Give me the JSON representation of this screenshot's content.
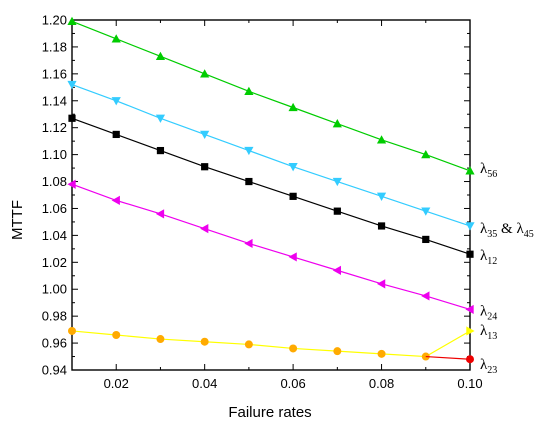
{
  "chart_data": {
    "type": "line",
    "xlabel": "Failure rates",
    "ylabel": "MTTF",
    "xlim": [
      0.01,
      0.1
    ],
    "ylim": [
      0.94,
      1.2
    ],
    "xticks": [
      "0.02",
      "0.04",
      "0.06",
      "0.08",
      "0.10"
    ],
    "xtick_values": [
      0.02,
      0.04,
      0.06,
      0.08,
      0.1
    ],
    "yticks": [
      "0.94",
      "0.96",
      "0.98",
      "1.00",
      "1.02",
      "1.04",
      "1.06",
      "1.08",
      "1.10",
      "1.12",
      "1.14",
      "1.16",
      "1.18",
      "1.20"
    ],
    "ytick_values": [
      0.94,
      0.96,
      0.98,
      1.0,
      1.02,
      1.04,
      1.06,
      1.08,
      1.1,
      1.12,
      1.14,
      1.16,
      1.18,
      1.2
    ],
    "grid": false,
    "x": [
      0.01,
      0.02,
      0.03,
      0.04,
      0.05,
      0.06,
      0.07,
      0.08,
      0.09,
      0.1
    ],
    "series": [
      {
        "name": "λ56",
        "sym": "λ",
        "sub": "56",
        "color": "#00cc00",
        "marker": "triangle-up",
        "marker_fill": "#00cc00",
        "values": [
          1.199,
          1.186,
          1.173,
          1.16,
          1.147,
          1.135,
          1.123,
          1.111,
          1.1,
          1.088
        ]
      },
      {
        "name": "λ35 & λ45",
        "sym": "λ",
        "sub": "35",
        "mid": " & ",
        "sym2": "λ",
        "sub2": "45",
        "color": "#33ccff",
        "marker": "triangle-down",
        "marker_fill": "#33ccff",
        "values": [
          1.152,
          1.14,
          1.127,
          1.115,
          1.103,
          1.091,
          1.08,
          1.069,
          1.058,
          1.047
        ]
      },
      {
        "name": "λ12",
        "sym": "λ",
        "sub": "12",
        "color": "#000000",
        "marker": "square",
        "marker_fill": "#000000",
        "values": [
          1.127,
          1.115,
          1.103,
          1.091,
          1.08,
          1.069,
          1.058,
          1.047,
          1.037,
          1.026
        ]
      },
      {
        "name": "λ24",
        "sym": "λ",
        "sub": "24",
        "color": "#ee00ee",
        "marker": "triangle-left",
        "marker_fill": "#ee00ee",
        "values": [
          1.078,
          1.066,
          1.056,
          1.045,
          1.034,
          1.024,
          1.014,
          1.004,
          0.995,
          0.985
        ]
      },
      {
        "name": "λ13",
        "sym": "λ",
        "sub": "13",
        "color": "#ffff00",
        "marker": "circle",
        "marker_fill": "#ffaa00",
        "values": [
          0.969,
          0.966,
          0.963,
          0.961,
          0.959,
          0.956,
          0.954,
          0.952,
          0.95,
          0.969
        ],
        "last_marker": "triangle-right",
        "last_marker_fill": "#ffff00"
      },
      {
        "name": "λ23",
        "sym": "λ",
        "sub": "23",
        "color": "#ee0000",
        "marker": "none",
        "x": [
          0.09,
          0.1
        ],
        "values": [
          0.95,
          0.948
        ],
        "last_marker": "circle",
        "last_marker_fill": "#ee0000"
      }
    ]
  }
}
